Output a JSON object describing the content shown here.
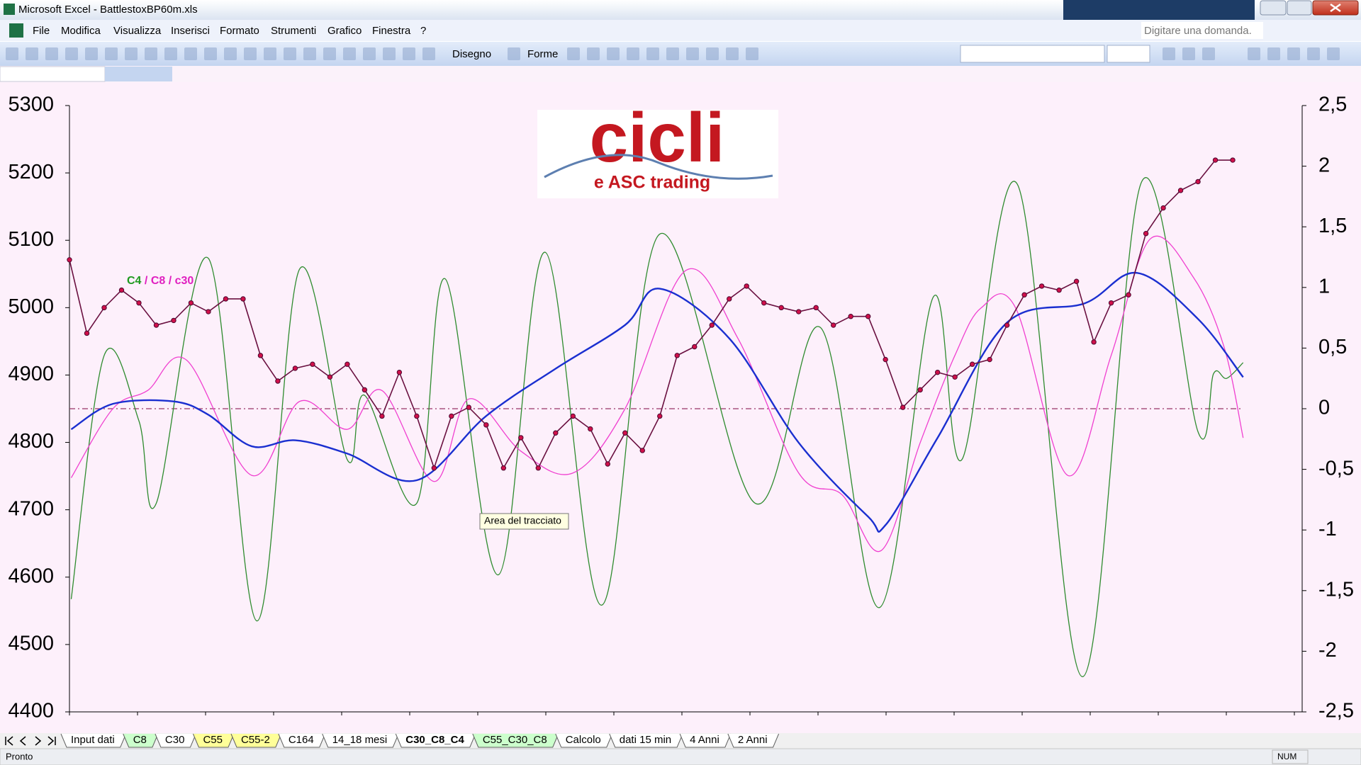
{
  "window": {
    "title": "Microsoft Excel - BattlestoxBP60m.xls"
  },
  "menu": [
    "File",
    "Modifica",
    "Visualizza",
    "Inserisci",
    "Formato",
    "Strumenti",
    "Grafico",
    "Finestra",
    "?"
  ],
  "help_box": "Digitare una domanda.",
  "toolbar": {
    "draw": "Disegno",
    "shapes": "Forme"
  },
  "logo": {
    "title": "cicli",
    "subtitle": "e ASC trading"
  },
  "tooltip": "Area del tracciato",
  "chart_data": {
    "type": "line",
    "legend_separator": "/",
    "xlim": [
      0,
      71
    ],
    "ylim": [
      4400,
      5300
    ],
    "yticks": [
      4400,
      4500,
      4600,
      4700,
      4800,
      4900,
      5000,
      5100,
      5200,
      5300
    ],
    "y2lim": [
      -2.5,
      2.5
    ],
    "y2ticks": [
      {
        "value": -2.5,
        "label": "-2,5"
      },
      -2,
      {
        "value": -1.5,
        "label": "-1,5"
      },
      -1,
      {
        "value": -0.5,
        "label": "-0,5"
      },
      0,
      {
        "value": 0.5,
        "label": "0,5"
      },
      1,
      {
        "value": 1.5,
        "label": "1,5"
      },
      2,
      {
        "value": 2.5,
        "label": "2,5"
      }
    ],
    "reference_line": {
      "axis": "y2",
      "value": 0,
      "color": "#993366"
    },
    "series": [
      {
        "color": "#6a1040",
        "marker_color": "#d0104a",
        "marker": true,
        "x": [
          0,
          1,
          2,
          3,
          4,
          5,
          6,
          7,
          8,
          9,
          10,
          11,
          12,
          13,
          14,
          15,
          16,
          17,
          18,
          19,
          20,
          21,
          22,
          23,
          24,
          25,
          26,
          27,
          28,
          29,
          30,
          31,
          32,
          33,
          34,
          35,
          36,
          37,
          38,
          39,
          40,
          41,
          42,
          43,
          44,
          45,
          46,
          47,
          48,
          49,
          50,
          51,
          52,
          53,
          54,
          55,
          56,
          57,
          58,
          59,
          60,
          61,
          62,
          63,
          64,
          65,
          66,
          67
        ],
        "values": [
          5071,
          4962,
          5000,
          5026,
          5007,
          4974,
          4981,
          5007,
          4994,
          5013,
          5013,
          4929,
          4891,
          4910,
          4916,
          4897,
          4916,
          4878,
          4839,
          4904,
          4839,
          4762,
          4839,
          4852,
          4826,
          4762,
          4807,
          4762,
          4814,
          4839,
          4820,
          4768,
          4814,
          4788,
          4839,
          4929,
          4942,
          4974,
          5013,
          5032,
          5007,
          5000,
          4994,
          5000,
          4974,
          4987,
          4987,
          4923,
          4852,
          4878,
          4904,
          4897,
          4916,
          4923,
          4974,
          5019,
          5032,
          5026,
          5039,
          4949,
          5007,
          5019,
          5110,
          5148,
          5174,
          5187,
          5219,
          5219
        ]
      },
      {
        "name": "C4",
        "axis": "y2",
        "color": "#2e8b2e",
        "legend_text_color": "#1f9a1f",
        "x": [
          0.1,
          2,
          4,
          5,
          8,
          10.8,
          13.25,
          16,
          17,
          20,
          21.65,
          24.7,
          27.4,
          30.65,
          34,
          39.5,
          43.25,
          46.65,
          49.75,
          51.4,
          54.6,
          58.35,
          61.75,
          65,
          65.9,
          66.65,
          67.6
        ],
        "values": [
          -1.57,
          0.44,
          -0.1,
          -0.78,
          1.24,
          -1.75,
          1.15,
          -0.42,
          0.11,
          -0.78,
          1.07,
          -1.37,
          1.29,
          -1.62,
          1.44,
          -0.78,
          0.67,
          -1.64,
          0.92,
          -0.42,
          1.85,
          -2.21,
          1.87,
          -0.19,
          0.29,
          0.25,
          0.38
        ]
      },
      {
        "name": "C8",
        "axis": "y2",
        "color": "#f040d0",
        "legend_text_color": "#e020c0",
        "x": [
          0.1,
          2.5,
          4.5,
          6.75,
          10.5,
          13.25,
          16,
          18,
          21,
          23,
          26,
          29,
          32,
          35.5,
          38.5,
          42,
          44.5,
          46.75,
          49,
          51,
          52.5,
          54.5,
          57.5,
          60,
          62.25,
          64.75,
          66.5,
          67.6
        ],
        "values": [
          -0.57,
          0,
          0.15,
          0.4,
          -0.55,
          0.06,
          -0.17,
          0.15,
          -0.6,
          0.08,
          -0.35,
          -0.53,
          0,
          1.14,
          0.58,
          -0.53,
          -0.71,
          -1.17,
          -0.28,
          0.44,
          0.83,
          0.83,
          -0.55,
          0.44,
          1.4,
          1.08,
          0.51,
          -0.24
        ]
      },
      {
        "name": "c30",
        "axis": "y2",
        "color": "#1a2fd0",
        "legend_text_color": "#e020c0",
        "x": [
          0.1,
          2.5,
          6,
          8,
          10.5,
          13,
          16,
          20,
          24,
          28,
          32,
          34,
          38,
          42,
          46,
          47,
          50,
          54,
          58.5,
          61.5,
          65,
          67.6
        ],
        "values": [
          -0.17,
          0.04,
          0.06,
          -0.05,
          -0.31,
          -0.26,
          -0.37,
          -0.59,
          -0.06,
          0.33,
          0.69,
          0.99,
          0.58,
          -0.28,
          -0.89,
          -0.96,
          -0.24,
          0.71,
          0.87,
          1.12,
          0.74,
          0.26
        ]
      }
    ]
  },
  "sheet_tabs": [
    {
      "label": "Input dati",
      "color": "#ffffff"
    },
    {
      "label": "C8",
      "color": "#ccffcc"
    },
    {
      "label": "C30",
      "color": "#ffffff"
    },
    {
      "label": "C55",
      "color": "#ffff99"
    },
    {
      "label": "C55-2",
      "color": "#ffff99"
    },
    {
      "label": "C164",
      "color": "#ffffff"
    },
    {
      "label": "14_18 mesi",
      "color": "#ffffff"
    },
    {
      "label": "C30_C8_C4",
      "color": "#ffffff",
      "active": true
    },
    {
      "label": "C55_C30_C8",
      "color": "#ccffcc"
    },
    {
      "label": "Calcolo",
      "color": "#ffffff"
    },
    {
      "label": "dati 15 min",
      "color": "#ffffff"
    },
    {
      "label": "4 Anni",
      "color": "#ffffff"
    },
    {
      "label": "2 Anni",
      "color": "#ffffff"
    }
  ],
  "status": {
    "left": "Pronto",
    "right": "NUM"
  }
}
